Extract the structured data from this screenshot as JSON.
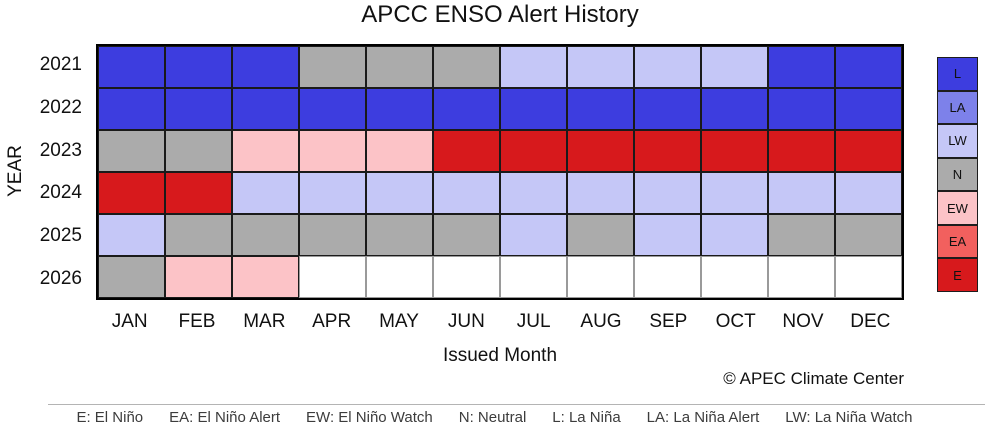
{
  "title": "APCC ENSO Alert History",
  "xlabel": "Issued Month",
  "ylabel": "YEAR",
  "credit": "© APEC Climate Center",
  "chart_data": {
    "type": "heatmap",
    "x": [
      "JAN",
      "FEB",
      "MAR",
      "APR",
      "MAY",
      "JUN",
      "JUL",
      "AUG",
      "SEP",
      "OCT",
      "NOV",
      "DEC"
    ],
    "y": [
      "2021",
      "2022",
      "2023",
      "2024",
      "2025",
      "2026"
    ],
    "rows": [
      [
        "L",
        "L",
        "L",
        "N",
        "N",
        "N",
        "LW",
        "LW",
        "LW",
        "LW",
        "L",
        "L"
      ],
      [
        "L",
        "L",
        "L",
        "L",
        "L",
        "L",
        "L",
        "L",
        "L",
        "L",
        "L",
        "L"
      ],
      [
        "N",
        "N",
        "EW",
        "EW",
        "EW",
        "E",
        "E",
        "E",
        "E",
        "E",
        "E",
        "E"
      ],
      [
        "E",
        "E",
        "LW",
        "LW",
        "LW",
        "LW",
        "LW",
        "LW",
        "LW",
        "LW",
        "LW",
        "LW"
      ],
      [
        "LW",
        "N",
        "N",
        "N",
        "N",
        "N",
        "LW",
        "N",
        "LW",
        "LW",
        "N",
        "N"
      ],
      [
        "N",
        "EW",
        "EW",
        null,
        null,
        null,
        null,
        null,
        null,
        null,
        null,
        null
      ]
    ],
    "palette": {
      "L": "#3d3ddf",
      "LA": "#7d81ea",
      "LW": "#c5c7f7",
      "N": "#ababab",
      "EW": "#fcc3c7",
      "EA": "#f2605e",
      "E": "#d7191c"
    },
    "no_data_color": "#ffffff",
    "legend_order": [
      "L",
      "LA",
      "LW",
      "N",
      "EW",
      "EA",
      "E"
    ],
    "legend_position": "right",
    "grid": "on"
  },
  "footer": {
    "items": [
      "E: El Niño",
      "EA: El Niño Alert",
      "EW: El Niño Watch",
      "N: Neutral",
      "L: La Niña",
      "LA: La Niña Alert",
      "LW: La Niña Watch"
    ]
  }
}
